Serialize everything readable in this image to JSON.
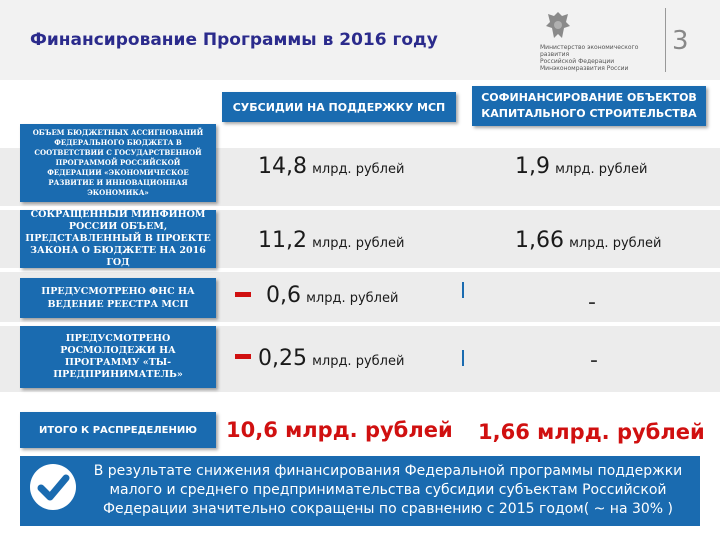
{
  "header": {
    "title": "Финансирование Программы в 2016 году",
    "ministry_text": [
      "Министерство экономического развития",
      "Российской Федерации",
      "Минэкономразвития России"
    ],
    "page_number": "3"
  },
  "columns": {
    "subsidies": "СУБСИДИИ НА ПОДДЕРЖКУ МСП",
    "cofinancing": "СОФИНАНСИРОВАНИЕ ОБЪЕКТОВ КАПИТАЛЬНОГО СТРОИТЕЛЬСТВА"
  },
  "rows": [
    {
      "label": "ОБЪЕМ БЮДЖЕТНЫХ АССИГНОВАНИЙ ФЕДЕРАЛЬНОГО БЮДЖЕТА В СООТВЕТСТВИИ С ГОСУДАРСТВЕННОЙ ПРОГРАММОЙ РОССИЙСКОЙ ФЕДЕРАЦИИ «ЭКОНОМИЧЕСКОЕ РАЗВИТИЕ И ИННОВАЦИОННАЯ ЭКОНОМИКА»",
      "subsidy_num": "14,8",
      "subsidy_unit": "млрд. рублей",
      "cofin_num": "1,9",
      "cofin_unit": "млрд. рублей"
    },
    {
      "label": "СОКРАЩЕННЫЙ МИНФИНОМ РОССИИ ОБЪЕМ, ПРЕДСТАВЛЕННЫЙ В ПРОЕКТЕ ЗАКОНА О БЮДЖЕТЕ НА 2016 ГОД",
      "subsidy_num": "11,2",
      "subsidy_unit": "млрд. рублей",
      "cofin_num": "1,66",
      "cofin_unit": "млрд. рублей"
    },
    {
      "label": "ПРЕДУСМОТРЕНО ФНС НА ВЕДЕНИЕ РЕЕСТРА МСП",
      "subsidy_num": "0,6",
      "subsidy_unit": "млрд. рублей",
      "cofin": "-"
    },
    {
      "label": "ПРЕДУСМОТРЕНО РОСМОЛОДЕЖИ НА ПРОГРАММУ «ТЫ-ПРЕДПРИНИМАТЕЛЬ»",
      "subsidy_num": "0,25",
      "subsidy_unit": "млрд. рублей",
      "cofin": "-"
    }
  ],
  "total": {
    "label": "ИТОГО К РАСПРЕДЕЛЕНИЮ",
    "subsidy": "10,6 млрд. рублей",
    "cofin": "1,66 млрд. рублей"
  },
  "conclusion": "В результате снижения финансирования Федеральной программы поддержки малого и среднего предпринимательства субсидии субъектам Российской Федерации значительно сокращены по сравнению с 2015 годом( ~ на 30% )",
  "colors": {
    "accent": "#1a6bb0",
    "negative": "#d01010",
    "title": "#2b2b8c"
  }
}
